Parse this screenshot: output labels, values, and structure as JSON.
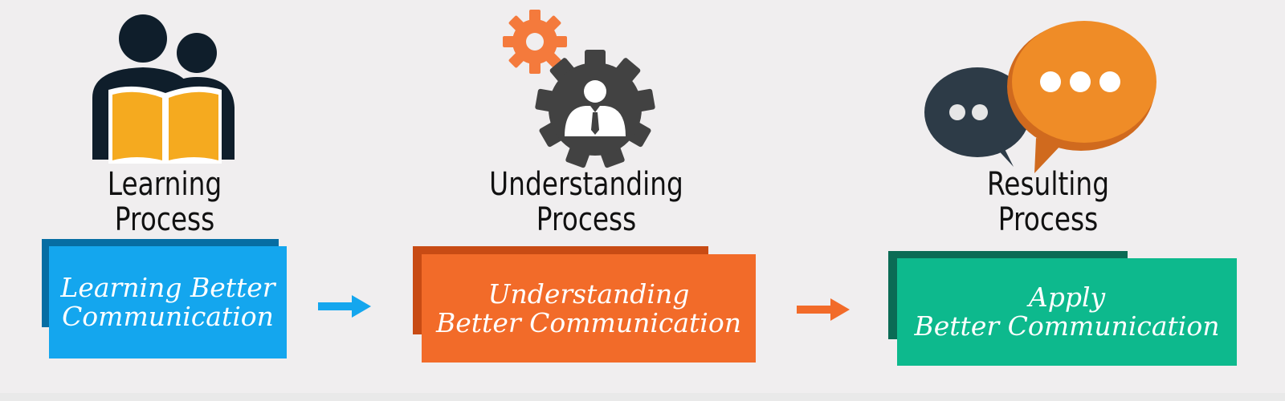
{
  "stages": [
    {
      "title_line1": "Learning",
      "title_line2": "Process",
      "box_line1": "Learning Better",
      "box_line2": "Communication",
      "icon": "people-reading-book-icon",
      "box_color": "#14a6ee",
      "shadow_color": "#066da3"
    },
    {
      "title_line1": "Understanding",
      "title_line2": "Process",
      "box_line1": "Understanding",
      "box_line2": "Better Communication",
      "icon": "gear-businessman-icon",
      "box_color": "#f26b29",
      "shadow_color": "#c84b14"
    },
    {
      "title_line1": "Resulting",
      "title_line2": "Process",
      "box_line1": "Apply",
      "box_line2": "Better Communication",
      "icon": "speech-bubbles-icon",
      "box_color": "#0db98d",
      "shadow_color": "#0b6b55"
    }
  ],
  "arrows": [
    {
      "icon": "arrow-right-icon",
      "color": "#14a6ee"
    },
    {
      "icon": "arrow-right-icon",
      "color": "#f26b29"
    }
  ]
}
